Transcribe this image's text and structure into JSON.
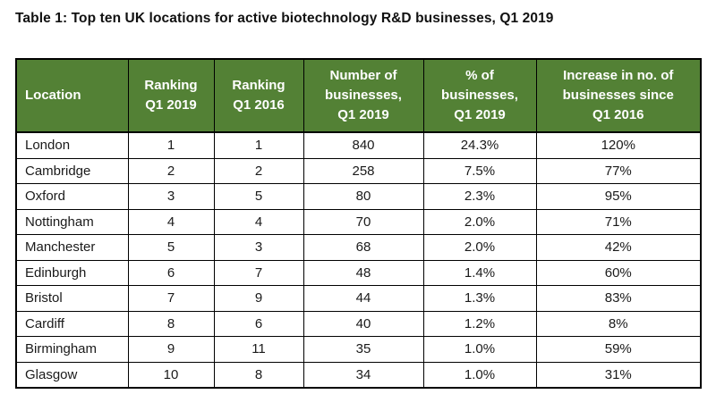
{
  "page": {
    "title": "Table 1: Top ten UK locations for active biotechnology R&D businesses, Q1 2019"
  },
  "colors": {
    "header_background": "#538135",
    "header_text": "#ffffff",
    "border": "#000000",
    "page_background": "#ffffff"
  },
  "table": {
    "columns": [
      "Location",
      "Ranking\nQ1 2019",
      "Ranking\nQ1 2016",
      "Number of\nbusinesses,\nQ1 2019",
      "% of\nbusinesses,\nQ1 2019",
      "Increase in no. of\nbusinesses since\nQ1 2016"
    ],
    "rows": [
      [
        "London",
        "1",
        "1",
        "840",
        "24.3%",
        "120%"
      ],
      [
        "Cambridge",
        "2",
        "2",
        "258",
        "7.5%",
        "77%"
      ],
      [
        "Oxford",
        "3",
        "5",
        "80",
        "2.3%",
        "95%"
      ],
      [
        "Nottingham",
        "4",
        "4",
        "70",
        "2.0%",
        "71%"
      ],
      [
        "Manchester",
        "5",
        "3",
        "68",
        "2.0%",
        "42%"
      ],
      [
        "Edinburgh",
        "6",
        "7",
        "48",
        "1.4%",
        "60%"
      ],
      [
        "Bristol",
        "7",
        "9",
        "44",
        "1.3%",
        "83%"
      ],
      [
        "Cardiff",
        "8",
        "6",
        "40",
        "1.2%",
        "8%"
      ],
      [
        "Birmingham",
        "9",
        "11",
        "35",
        "1.0%",
        "59%"
      ],
      [
        "Glasgow",
        "10",
        "8",
        "34",
        "1.0%",
        "31%"
      ]
    ]
  }
}
